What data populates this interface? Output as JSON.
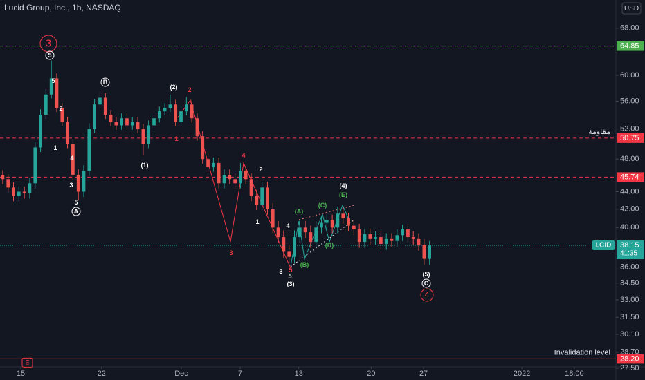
{
  "chart_data": {
    "type": "candlestick",
    "title": "Lucid Group, Inc., 1h, NASDAQ",
    "currency": "USD",
    "log_scale": true,
    "grid": false,
    "up_color": "#26a69a",
    "down_color": "#ef5350",
    "xlim": [
      -0.5,
      113.5
    ],
    "ylim": [
      27.3,
      73.3
    ],
    "xticks": [
      {
        "value": 3.34,
        "label": "15"
      },
      {
        "value": 18.3,
        "label": "22"
      },
      {
        "value": 33.06,
        "label": "Dec"
      },
      {
        "value": 43.95,
        "label": "7"
      },
      {
        "value": 54.8,
        "label": "13"
      },
      {
        "value": 68.2,
        "label": "20"
      },
      {
        "value": 77.9,
        "label": "27"
      },
      {
        "value": 96.1,
        "label": "2022"
      },
      {
        "value": 105.8,
        "label": "18:00"
      }
    ],
    "yticks": [
      {
        "value": 68,
        "label": "68.00"
      },
      {
        "value": 60,
        "label": "60.00"
      },
      {
        "value": 56,
        "label": "56.00"
      },
      {
        "value": 52,
        "label": "52.00"
      },
      {
        "value": 48,
        "label": "48.00"
      },
      {
        "value": 44,
        "label": "44.00"
      },
      {
        "value": 42,
        "label": "42.00"
      },
      {
        "value": 40,
        "label": "40.00"
      },
      {
        "value": 36,
        "label": "36.00"
      },
      {
        "value": 34.5,
        "label": "34.50"
      },
      {
        "value": 33,
        "label": "33.00"
      },
      {
        "value": 31.5,
        "label": "31.50"
      },
      {
        "value": 30.1,
        "label": "30.10"
      },
      {
        "value": 28.7,
        "label": "28.70"
      },
      {
        "value": 27.5,
        "label": "27.50"
      }
    ],
    "open": [
      46,
      45.5,
      44.5,
      43.5,
      44.0,
      43.8,
      45.0,
      49.5,
      54.0,
      57.0,
      59.5,
      55.0,
      53.0,
      50.0,
      46.0,
      44.0,
      46.5,
      52.0,
      55.5,
      56.5,
      54.0,
      53.0,
      52.5,
      53.5,
      52.5,
      53.0,
      52.0,
      50.0,
      52.5,
      53.5,
      54.5,
      55.0,
      55.5,
      53.0,
      54.5,
      55.5,
      53.5,
      51.0,
      48.0,
      47.0,
      47.5,
      45.0,
      46.0,
      45.5,
      45.0,
      46.5,
      45.5,
      43.5,
      42.5,
      44.5,
      42.0,
      40.0,
      39.0,
      37.5,
      37.0,
      39.0,
      40.0,
      39.5,
      38.5,
      40.0,
      40.5,
      40.8,
      40.0,
      41.5,
      41.0,
      40.2,
      39.8,
      38.5,
      39.3,
      38.8,
      39.0,
      38.3,
      38.8,
      38.6,
      39.2,
      39.8,
      39.0,
      38.8,
      38.2,
      36.8
    ],
    "high": [
      46.6,
      46.1,
      45.1,
      44.6,
      44.6,
      45.6,
      50.2,
      54.8,
      57.8,
      62.4,
      60.3,
      55.7,
      53.7,
      50.7,
      46.7,
      47.2,
      52.8,
      56.3,
      57.5,
      57.2,
      54.7,
      53.7,
      54.2,
      54.2,
      53.7,
      53.7,
      52.7,
      53.2,
      54.2,
      55.2,
      55.7,
      57.0,
      56.2,
      55.2,
      56.6,
      56.2,
      54.2,
      51.7,
      48.7,
      48.2,
      48.2,
      46.7,
      46.7,
      46.2,
      47.5,
      47.0,
      46.2,
      44.2,
      45.2,
      45.2,
      42.7,
      40.7,
      39.7,
      38.2,
      39.7,
      40.8,
      40.7,
      40.2,
      40.7,
      41.2,
      41.4,
      41.4,
      42.3,
      42.0,
      41.6,
      40.8,
      40.4,
      39.9,
      39.9,
      39.6,
      39.6,
      39.4,
      39.4,
      39.8,
      40.3,
      40.4,
      39.6,
      39.4,
      38.8,
      38.6
    ],
    "low": [
      44.9,
      43.9,
      42.9,
      42.9,
      43.2,
      43.2,
      44.4,
      48.9,
      53.4,
      56.4,
      54.4,
      52.4,
      49.4,
      45.4,
      43.0,
      43.4,
      45.9,
      51.4,
      54.9,
      53.4,
      52.4,
      51.9,
      51.9,
      51.9,
      51.9,
      51.4,
      48.5,
      49.4,
      51.9,
      52.9,
      53.9,
      54.4,
      52.4,
      52.4,
      53.9,
      52.9,
      50.4,
      47.4,
      46.4,
      46.4,
      44.4,
      44.4,
      44.9,
      44.4,
      44.4,
      44.9,
      42.9,
      41.9,
      41.9,
      41.4,
      39.4,
      38.4,
      36.9,
      36.4,
      36.4,
      38.4,
      38.9,
      37.9,
      37.9,
      39.4,
      39.9,
      39.4,
      39.4,
      40.4,
      39.6,
      39.2,
      37.9,
      37.9,
      38.2,
      38.2,
      37.7,
      37.7,
      38.0,
      38.0,
      38.6,
      38.4,
      38.2,
      37.6,
      36.2,
      36.2
    ],
    "close": [
      45.5,
      44.5,
      43.5,
      44.0,
      43.8,
      45.0,
      49.5,
      54.0,
      57.0,
      59.5,
      55.0,
      53.0,
      50.0,
      46.0,
      44.0,
      46.5,
      52.0,
      55.5,
      56.5,
      54.0,
      53.0,
      52.5,
      53.5,
      52.5,
      53.0,
      52.0,
      50.0,
      52.5,
      53.5,
      54.5,
      55.0,
      55.5,
      53.0,
      54.5,
      55.5,
      53.5,
      51.0,
      48.0,
      47.0,
      47.5,
      45.0,
      46.0,
      45.5,
      45.0,
      46.5,
      45.5,
      43.5,
      42.5,
      44.5,
      42.0,
      40.0,
      39.0,
      37.5,
      37.0,
      39.0,
      40.0,
      39.5,
      38.5,
      40.0,
      40.5,
      40.8,
      40.0,
      41.5,
      41.0,
      40.2,
      39.8,
      38.5,
      39.3,
      38.8,
      39.0,
      38.3,
      38.8,
      38.6,
      39.2,
      39.8,
      39.0,
      38.8,
      38.2,
      36.8,
      38.15
    ],
    "levels": [
      {
        "value": 64.85,
        "label": "64.85",
        "color": "#4caf50",
        "style": "dashed"
      },
      {
        "value": 50.75,
        "label": "50.75",
        "color": "#f23645",
        "style": "dashed",
        "note": "مقاومة"
      },
      {
        "value": 45.74,
        "label": "45.74",
        "color": "#f23645",
        "style": "dashed"
      },
      {
        "value": 28.2,
        "label": "28.20",
        "color": "#f23645",
        "style": "solid",
        "note": "Invalidation level"
      }
    ],
    "last_price": {
      "value": 38.15,
      "label": "38.15",
      "symbol": "LCID",
      "countdown": "41:35",
      "color": "#26a69a"
    },
    "event_marker": "E",
    "annotations": [
      "3",
      "5",
      "5",
      "2",
      "1",
      "4",
      "3",
      "5",
      "A",
      "B",
      "(2)",
      "2",
      "1",
      "(1)",
      "4",
      "2",
      "1",
      "3",
      "4",
      "3",
      "5",
      "5",
      "(3)",
      "(A)",
      "(B)",
      "(C)",
      "(D)",
      "(E)",
      "(4)",
      "(5)",
      "C",
      "4"
    ]
  }
}
